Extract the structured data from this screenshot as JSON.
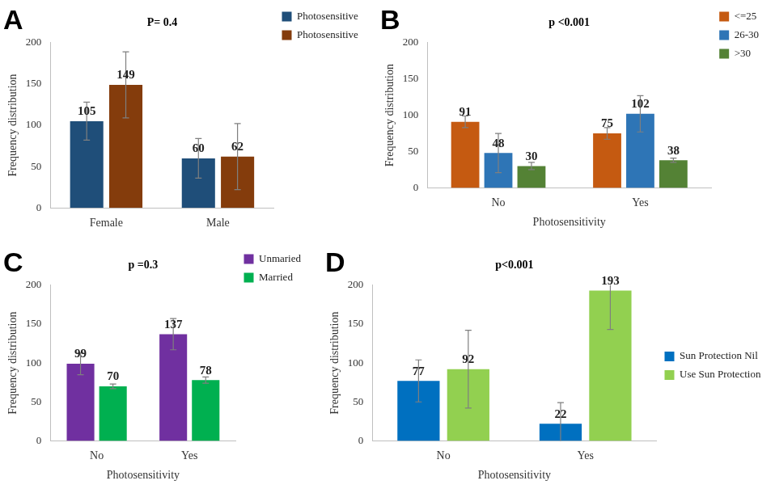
{
  "chart_data": [
    {
      "type": "bar",
      "title": "A",
      "annotations": [
        "P= 0.4"
      ],
      "y_label": "Frequency distribution",
      "categories": [
        "Female",
        "Male"
      ],
      "series": [
        {
          "name": "Photosensitive",
          "color": "#1f4e79",
          "values": [
            105,
            60
          ],
          "errors": [
            23,
            24
          ]
        },
        {
          "name": "Photosensitive",
          "color": "#843c0c",
          "values": [
            149,
            62
          ],
          "errors": [
            40,
            40
          ]
        }
      ],
      "ylim": [
        0,
        200
      ],
      "yticks": [
        0,
        50,
        100,
        150,
        200
      ],
      "grid": false,
      "legend": "top-right",
      "data_labels": true
    },
    {
      "type": "bar",
      "title": "B",
      "annotations": [
        "p <0.001"
      ],
      "y_label": "Frequency distribution",
      "x_label": "Photosensitivity",
      "categories": [
        "No",
        "Yes"
      ],
      "series": [
        {
          "name": "<=25",
          "color": "#c55a11",
          "values": [
            91,
            75
          ],
          "errors": [
            8,
            8
          ]
        },
        {
          "name": "26-30",
          "color": "#2e75b6",
          "values": [
            48,
            102
          ],
          "errors": [
            27,
            25
          ]
        },
        {
          "name": ">30",
          "color": "#548235",
          "values": [
            30,
            38
          ],
          "errors": [
            5,
            3
          ]
        }
      ],
      "ylim": [
        0,
        200
      ],
      "yticks": [
        0,
        50,
        100,
        150,
        200
      ],
      "grid": false,
      "legend": "top-right",
      "data_labels": true
    },
    {
      "type": "bar",
      "title": "C",
      "annotations": [
        "p =0.3"
      ],
      "y_label": "Frequency distribution",
      "x_label": "Photosensitivity",
      "categories": [
        "No",
        "Yes"
      ],
      "series": [
        {
          "name": "Unmaried",
          "color": "#7030a0",
          "values": [
            99,
            137
          ],
          "errors": [
            14,
            20
          ]
        },
        {
          "name": "Married",
          "color": "#00b050",
          "values": [
            70,
            78
          ],
          "errors": [
            3,
            4
          ]
        }
      ],
      "ylim": [
        0,
        200
      ],
      "yticks": [
        0,
        50,
        100,
        150,
        200
      ],
      "grid": false,
      "legend": "top-right",
      "data_labels": true
    },
    {
      "type": "bar",
      "title": "D",
      "annotations": [
        "p<0.001"
      ],
      "y_label": "Frequency distribution",
      "x_label": "Photosensitivity",
      "categories": [
        "No",
        "Yes"
      ],
      "series": [
        {
          "name": "Sun Protection Nil",
          "color": "#0070c0",
          "values": [
            77,
            22
          ],
          "errors": [
            27,
            27
          ]
        },
        {
          "name": "Use Sun Protection",
          "color": "#92d050",
          "values": [
            92,
            193
          ],
          "errors": [
            50,
            50
          ]
        }
      ],
      "ylim": [
        0,
        200
      ],
      "yticks": [
        0,
        50,
        100,
        150,
        200
      ],
      "grid": false,
      "legend": "right",
      "data_labels": true
    }
  ]
}
